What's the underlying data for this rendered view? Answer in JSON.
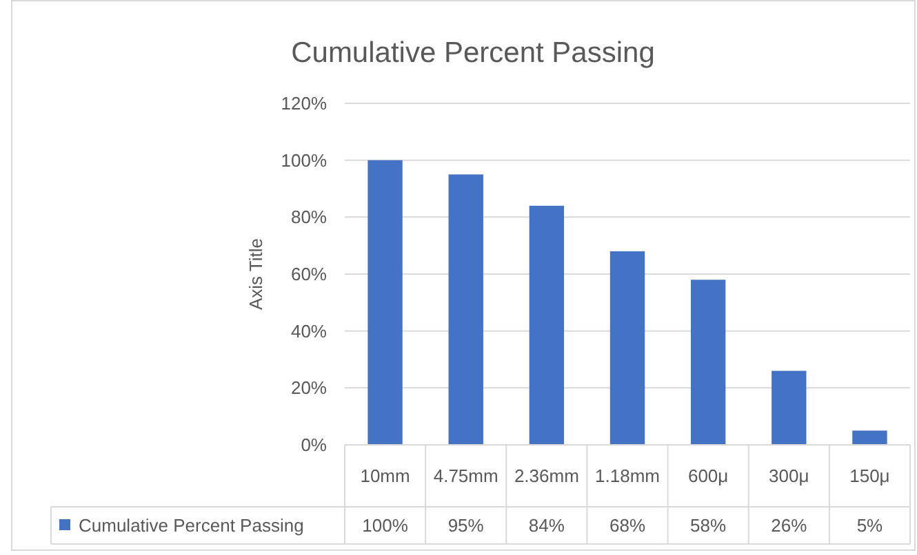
{
  "chart_data": {
    "type": "bar",
    "title": "Cumulative Percent Passing",
    "ylabel": "Axis Title",
    "categories": [
      "10mm",
      "4.75mm",
      "2.36mm",
      "1.18mm",
      "600μ",
      "300μ",
      "150μ"
    ],
    "series": [
      {
        "name": "Cumulative Percent Passing",
        "color": "#4472c4",
        "values": [
          100,
          95,
          84,
          68,
          58,
          26,
          5
        ],
        "value_labels": [
          "100%",
          "95%",
          "84%",
          "68%",
          "58%",
          "26%",
          "5%"
        ]
      }
    ],
    "ylim": [
      0,
      120
    ],
    "yticks": [
      {
        "value": 0,
        "label": "0%"
      },
      {
        "value": 20,
        "label": "20%"
      },
      {
        "value": 40,
        "label": "40%"
      },
      {
        "value": 60,
        "label": "60%"
      },
      {
        "value": 80,
        "label": "80%"
      },
      {
        "value": 100,
        "label": "100%"
      },
      {
        "value": 120,
        "label": "120%"
      }
    ],
    "grid": "y",
    "legend": "bottom"
  }
}
